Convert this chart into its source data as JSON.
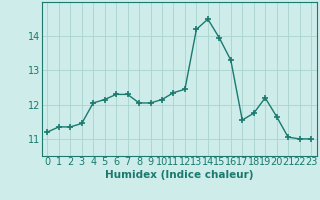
{
  "x": [
    0,
    1,
    2,
    3,
    4,
    5,
    6,
    7,
    8,
    9,
    10,
    11,
    12,
    13,
    14,
    15,
    16,
    17,
    18,
    19,
    20,
    21,
    22,
    23
  ],
  "y": [
    11.2,
    11.35,
    11.35,
    11.45,
    12.05,
    12.15,
    12.3,
    12.3,
    12.05,
    12.05,
    12.15,
    12.35,
    12.45,
    14.2,
    14.5,
    13.95,
    13.3,
    11.55,
    11.75,
    12.2,
    11.65,
    11.05,
    11.0,
    11.0
  ],
  "xlabel": "Humidex (Indice chaleur)",
  "ylim": [
    10.5,
    15.0
  ],
  "xlim": [
    -0.5,
    23.5
  ],
  "yticks": [
    11,
    12,
    13,
    14
  ],
  "xticks": [
    0,
    1,
    2,
    3,
    4,
    5,
    6,
    7,
    8,
    9,
    10,
    11,
    12,
    13,
    14,
    15,
    16,
    17,
    18,
    19,
    20,
    21,
    22,
    23
  ],
  "line_color": "#1a7a6e",
  "marker_color": "#1a7a6e",
  "bg_color": "#ceecea",
  "grid_color": "#a8d4d0",
  "axis_color": "#1a7a6e",
  "xlabel_fontsize": 7.5,
  "tick_fontsize": 7.0
}
